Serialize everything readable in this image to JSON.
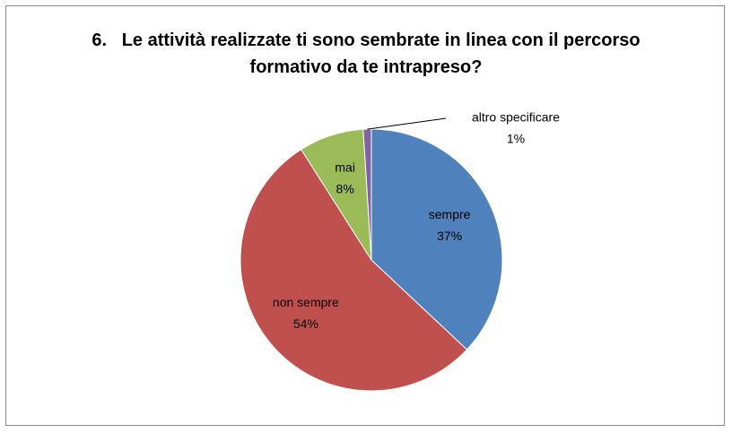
{
  "chart_data": {
    "type": "pie",
    "title": "6.   Le attività realizzate ti sono sembrate in linea con il percorso formativo da te intrapreso?",
    "categories": [
      "sempre",
      "non sempre",
      "mai",
      "altro specificare"
    ],
    "values": [
      37,
      54,
      8,
      1
    ],
    "value_labels": [
      "37%",
      "54%",
      "8%",
      "1%"
    ],
    "colors": [
      "#4f81bd",
      "#c0504d",
      "#9bbb59",
      "#8064a2"
    ]
  }
}
